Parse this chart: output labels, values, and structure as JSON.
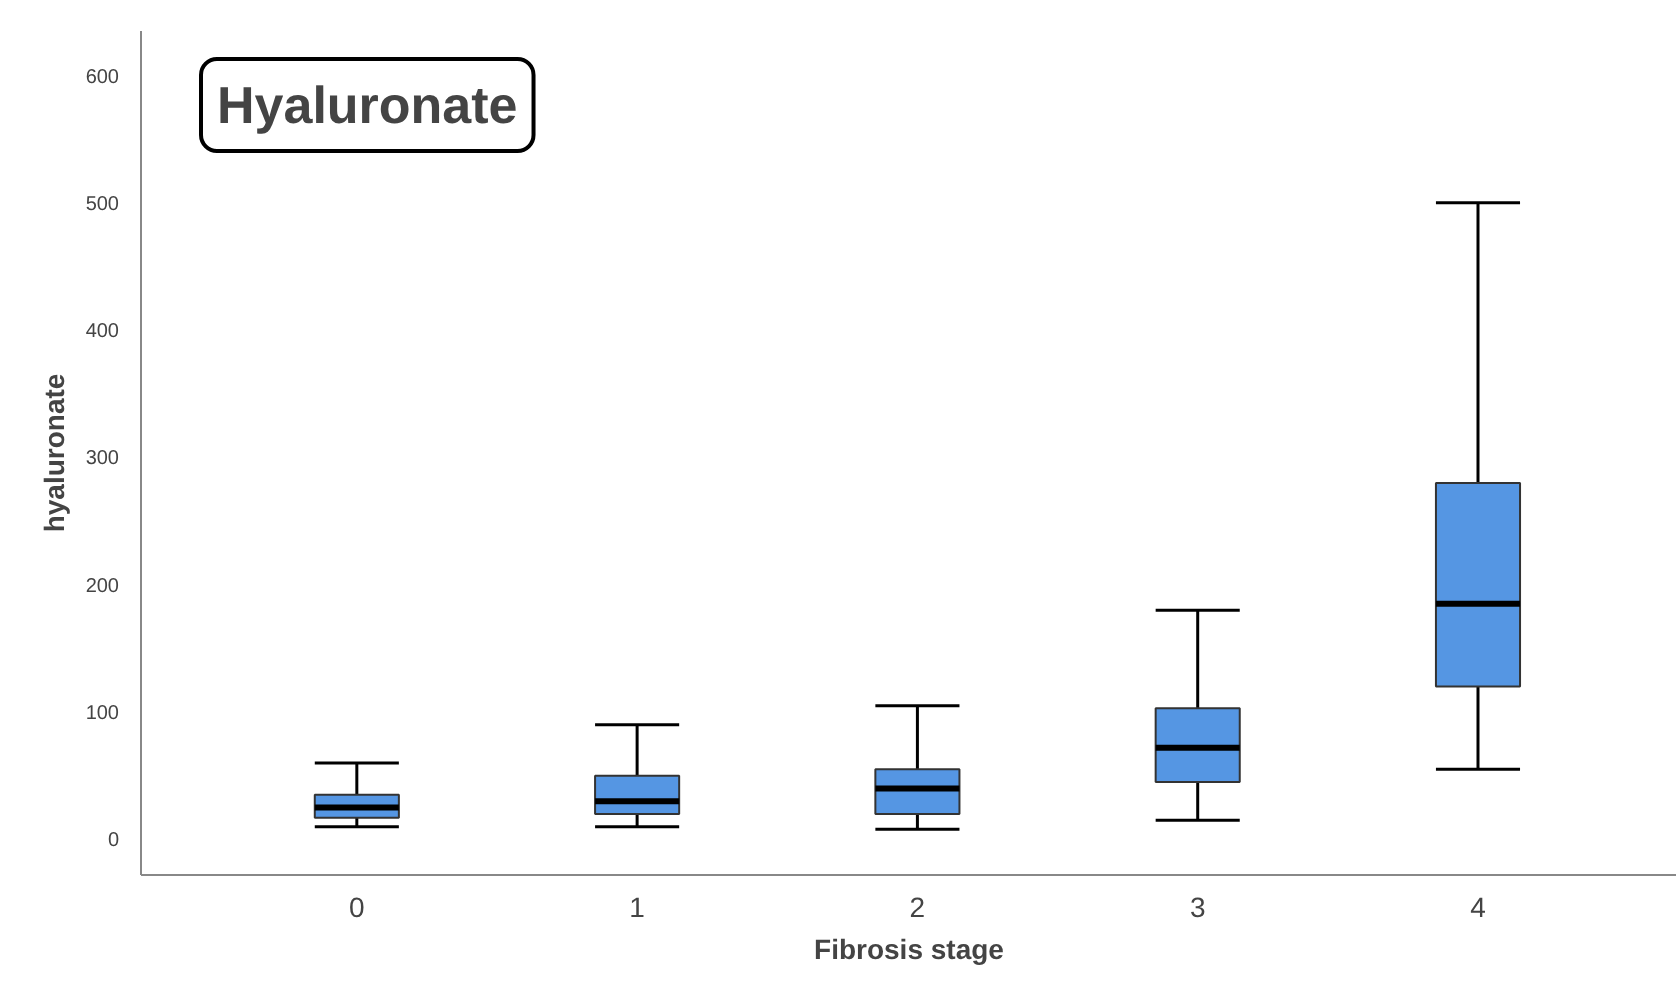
{
  "chart_data": {
    "type": "box",
    "title": "Hyaluronate",
    "xlabel": "Fibrosis stage",
    "ylabel": "hyaluronate",
    "categories": [
      "0",
      "1",
      "2",
      "3",
      "4"
    ],
    "series": [
      {
        "color": "#5596e3",
        "boxes": [
          {
            "low": 10,
            "q1": 17,
            "median": 25,
            "q3": 35,
            "high": 60
          },
          {
            "low": 10,
            "q1": 20,
            "median": 30,
            "q3": 50,
            "high": 90
          },
          {
            "low": 8,
            "q1": 20,
            "median": 40,
            "q3": 55,
            "high": 105
          },
          {
            "low": 15,
            "q1": 45,
            "median": 72,
            "q3": 103,
            "high": 180
          },
          {
            "low": 55,
            "q1": 120,
            "median": 185,
            "q3": 280,
            "high": 500
          }
        ]
      }
    ],
    "ylim": [
      -28,
      635
    ],
    "yticks": [
      0,
      100,
      200,
      300,
      400,
      500,
      600
    ],
    "grid": false
  }
}
